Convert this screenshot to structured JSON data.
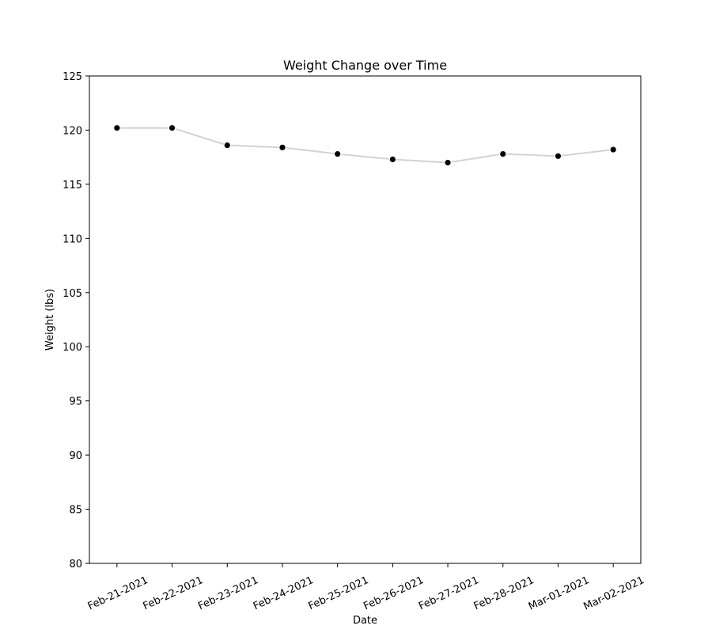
{
  "chart_data": {
    "type": "line",
    "title": "Weight Change over Time",
    "xlabel": "Date",
    "ylabel": "Weight (lbs)",
    "categories": [
      "Feb-21-2021",
      "Feb-22-2021",
      "Feb-23-2021",
      "Feb-24-2021",
      "Feb-25-2021",
      "Feb-26-2021",
      "Feb-27-2021",
      "Feb-28-2021",
      "Mar-01-2021",
      "Mar-02-2021"
    ],
    "values": [
      120.2,
      120.2,
      118.6,
      118.4,
      117.8,
      117.3,
      117.0,
      117.8,
      117.6,
      118.2
    ],
    "ylim": [
      80,
      125
    ],
    "yticks": [
      80,
      85,
      90,
      95,
      100,
      105,
      110,
      115,
      120,
      125
    ],
    "grid": false,
    "line_color": "#d3d3d3",
    "marker_color": "#000000",
    "marker_edge_color": "#ffffff"
  }
}
